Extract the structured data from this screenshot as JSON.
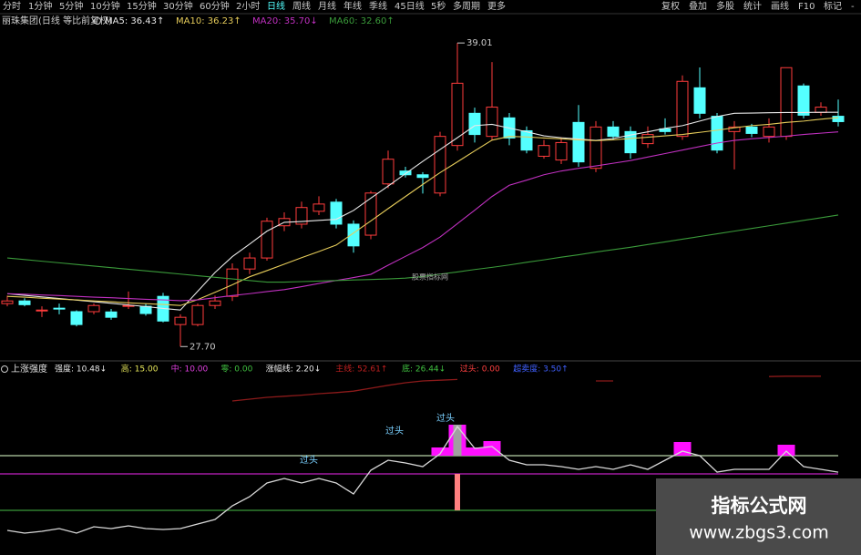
{
  "toolbar": {
    "periods": [
      "分时",
      "1分钟",
      "5分钟",
      "10分钟",
      "15分钟",
      "30分钟",
      "60分钟",
      "2小时",
      "日线",
      "周线",
      "月线",
      "年线",
      "季线",
      "45日线",
      "5秒",
      "多周期",
      "更多"
    ],
    "tools": [
      "复权",
      "叠加",
      "多股",
      "统计",
      "画线",
      "F10",
      "标记",
      "-"
    ]
  },
  "stock": "丽珠集团(日线 等比前复权)",
  "watermark": {
    "title": "指标公式网",
    "url": "www.zbgs3.com"
  },
  "chart_data": [
    {
      "type": "candlestick",
      "ylim": [
        27.2,
        40.0
      ],
      "up_color": "#ff3c3c",
      "down_color": "#54ffff",
      "high_label": "39.01",
      "low_label": "27.70",
      "note": "股票指标网",
      "open": [
        29.3,
        29.4,
        29.06,
        29.13,
        29.0,
        29.0,
        28.99,
        29.2,
        29.2,
        29.57,
        28.52,
        28.52,
        29.23,
        29.57,
        30.59,
        31.0,
        32.2,
        32.26,
        32.74,
        33.08,
        32.26,
        31.85,
        33.76,
        34.24,
        34.1,
        33.42,
        35.19,
        36.39,
        35.53,
        36.22,
        35.74,
        34.79,
        34.65,
        36.05,
        34.34,
        35.88,
        35.71,
        35.26,
        35.81,
        35.53,
        37.34,
        36.28,
        35.71,
        35.88,
        35.53,
        35.53,
        37.41,
        36.42,
        36.28
      ],
      "high": [
        29.6,
        29.5,
        29.2,
        29.3,
        29.05,
        29.3,
        29.1,
        29.75,
        29.3,
        29.7,
        28.9,
        29.3,
        29.6,
        30.8,
        31.2,
        32.5,
        32.7,
        33.1,
        33.3,
        33.2,
        32.4,
        33.5,
        35.0,
        34.4,
        34.2,
        35.7,
        39.01,
        36.6,
        38.3,
        36.4,
        35.9,
        35.4,
        35.5,
        36.7,
        36.1,
        36.1,
        35.9,
        35.9,
        36.2,
        37.8,
        38.1,
        36.4,
        36.1,
        36.0,
        36.2,
        38.1,
        37.5,
        36.8,
        36.9
      ],
      "low": [
        29.2,
        29.2,
        28.8,
        28.9,
        28.45,
        28.9,
        28.7,
        29.1,
        28.85,
        28.6,
        27.7,
        28.45,
        29.1,
        29.4,
        30.4,
        30.9,
        32.0,
        32.1,
        32.6,
        32.1,
        31.2,
        31.7,
        33.6,
        34.0,
        33.4,
        33.3,
        35.0,
        35.3,
        35.4,
        35.2,
        34.9,
        34.7,
        34.5,
        34.4,
        34.2,
        35.4,
        34.7,
        35.1,
        35.6,
        35.4,
        36.2,
        34.9,
        34.3,
        35.5,
        35.3,
        35.4,
        36.2,
        36.3,
        35.9
      ],
      "close": [
        29.4,
        29.26,
        29.06,
        29.1,
        28.52,
        29.23,
        28.79,
        29.23,
        28.93,
        28.65,
        28.79,
        29.23,
        29.4,
        30.59,
        31.0,
        32.37,
        32.47,
        32.88,
        33.01,
        32.26,
        31.45,
        33.42,
        34.68,
        34.1,
        34.0,
        35.53,
        37.51,
        35.6,
        36.62,
        35.47,
        35.02,
        35.19,
        35.3,
        34.58,
        35.88,
        35.53,
        34.92,
        35.6,
        35.71,
        37.58,
        36.39,
        35.02,
        35.88,
        35.64,
        35.88,
        38.09,
        36.32,
        36.62,
        36.08
      ],
      "series": [
        {
          "legend_text": "MA5: 36.43↑",
          "color": "#e8e8e8",
          "values": [
            29.67,
            29.61,
            29.55,
            29.49,
            29.43,
            29.37,
            29.31,
            29.25,
            29.19,
            29.12,
            29.06,
            29.76,
            30.46,
            31.05,
            31.52,
            32.0,
            32.33,
            32.36,
            32.4,
            32.44,
            32.77,
            33.23,
            33.68,
            34.14,
            34.6,
            35.04,
            35.48,
            35.93,
            35.98,
            35.84,
            35.7,
            35.55,
            35.48,
            35.43,
            35.38,
            35.45,
            35.58,
            35.7,
            35.83,
            35.93,
            36.1,
            36.27,
            36.39,
            36.4,
            36.41,
            36.42,
            36.42,
            36.43,
            36.43
          ]
        },
        {
          "legend_text": "MA10: 36.23↑",
          "color": "#e6cc5a",
          "values": [
            29.57,
            29.54,
            29.5,
            29.47,
            29.44,
            29.4,
            29.37,
            29.33,
            29.3,
            29.27,
            29.23,
            29.45,
            29.72,
            30.0,
            30.3,
            30.53,
            30.77,
            31.01,
            31.24,
            31.48,
            31.93,
            32.38,
            32.84,
            33.29,
            33.74,
            34.18,
            34.58,
            34.99,
            35.39,
            35.53,
            35.51,
            35.47,
            35.44,
            35.4,
            35.37,
            35.4,
            35.45,
            35.5,
            35.55,
            35.6,
            35.68,
            35.76,
            35.85,
            35.93,
            35.98,
            36.05,
            36.1,
            36.17,
            36.23
          ]
        },
        {
          "legend_text": "MA20: 35.70↓",
          "color": "#c030c0",
          "values": [
            29.67,
            29.65,
            29.62,
            29.6,
            29.57,
            29.54,
            29.52,
            29.49,
            29.46,
            29.44,
            29.41,
            29.44,
            29.52,
            29.6,
            29.67,
            29.75,
            29.82,
            29.93,
            30.05,
            30.16,
            30.27,
            30.39,
            30.73,
            31.06,
            31.39,
            31.78,
            32.28,
            32.78,
            33.29,
            33.71,
            33.9,
            34.1,
            34.24,
            34.34,
            34.43,
            34.53,
            34.63,
            34.76,
            34.89,
            35.02,
            35.15,
            35.28,
            35.38,
            35.44,
            35.49,
            35.54,
            35.6,
            35.65,
            35.7
          ]
        },
        {
          "legend_text": "MA60: 32.60↑",
          "color": "#3a9a3a",
          "values": [
            31.0,
            30.94,
            30.88,
            30.82,
            30.76,
            30.7,
            30.64,
            30.58,
            30.52,
            30.46,
            30.4,
            30.34,
            30.28,
            30.22,
            30.16,
            30.1,
            30.1,
            30.12,
            30.14,
            30.16,
            30.18,
            30.2,
            30.22,
            30.25,
            30.31,
            30.4,
            30.48,
            30.57,
            30.65,
            30.74,
            30.84,
            30.93,
            31.03,
            31.12,
            31.22,
            31.31,
            31.4,
            31.5,
            31.6,
            31.7,
            31.8,
            31.9,
            32.0,
            32.1,
            32.2,
            32.3,
            32.4,
            32.5,
            32.6
          ]
        }
      ]
    },
    {
      "type": "line",
      "title": "上涨强度",
      "ylim": [
        -11.25,
        40
      ],
      "legend": [
        {
          "text": "强度: 10.48↓",
          "color": "#e8e8e8"
        },
        {
          "text": "高: 15.00",
          "color": "#e6e65a"
        },
        {
          "text": "中: 10.00",
          "color": "#e040e0"
        },
        {
          "text": "零: 0.00",
          "color": "#40c040"
        },
        {
          "text": "涨幅线: 2.20↓",
          "color": "#e8e8e8"
        },
        {
          "text": "主线: 52.61↑",
          "color": "#c02020"
        },
        {
          "text": "底: 26.44↓",
          "color": "#40c040"
        },
        {
          "text": "过头: 0.00",
          "color": "#ff4040"
        },
        {
          "text": "超卖度: 3.50↑",
          "color": "#4060ff"
        }
      ],
      "hlines": [
        {
          "value": 15,
          "color": "#b8d4a8"
        },
        {
          "value": 10,
          "color": "#c020c0"
        },
        {
          "value": 0,
          "color": "#3a9a3a"
        }
      ],
      "annotations": [
        "过头",
        "过头",
        "过头"
      ],
      "series": [
        {
          "color": "#d8d8d8",
          "values": [
            -5.5,
            -6.25,
            -5.75,
            -5,
            -6.25,
            -4.5,
            -5,
            -4.25,
            -5,
            -5.25,
            -5,
            -3.75,
            -2.5,
            1.25,
            3.75,
            7.5,
            8.75,
            7.5,
            8.75,
            7.5,
            4.5,
            11,
            13.75,
            13,
            12,
            15.5,
            23,
            17,
            17.5,
            13.75,
            12.5,
            12.5,
            12,
            11.25,
            12,
            11.25,
            12.5,
            11.25,
            13.75,
            16.25,
            15,
            10.5,
            11.25,
            11.25,
            11.25,
            16.25,
            12,
            11.25,
            10.48
          ]
        },
        {
          "color": "#8b1a1a",
          "values": [
            null,
            null,
            null,
            null,
            null,
            null,
            null,
            null,
            null,
            null,
            null,
            null,
            null,
            30,
            30.5,
            31,
            31.3,
            31.6,
            32,
            32.3,
            32.7,
            33.5,
            34.3,
            35,
            35.5,
            35.7,
            35.9,
            null,
            null,
            null,
            null,
            null,
            null,
            null,
            35.5,
            35.5,
            null,
            null,
            null,
            null,
            null,
            null,
            null,
            null,
            36.7,
            36.8,
            36.8,
            36.8,
            null
          ]
        }
      ],
      "bars": [
        {
          "color": "#ff10ff",
          "values": [
            null,
            null,
            null,
            null,
            null,
            null,
            null,
            null,
            null,
            null,
            null,
            null,
            null,
            null,
            null,
            null,
            null,
            null,
            null,
            null,
            null,
            null,
            null,
            null,
            null,
            17.25,
            23.5,
            17.25,
            19,
            null,
            null,
            null,
            null,
            null,
            null,
            null,
            null,
            null,
            null,
            18.75,
            null,
            null,
            null,
            null,
            null,
            18,
            null,
            null,
            null
          ]
        },
        {
          "color": "#a0a0a0",
          "values": [
            null,
            null,
            null,
            null,
            null,
            null,
            null,
            null,
            null,
            null,
            null,
            null,
            null,
            null,
            null,
            null,
            null,
            null,
            null,
            null,
            null,
            null,
            null,
            null,
            null,
            null,
            23.5,
            null,
            null,
            null,
            null,
            null,
            null,
            null,
            null,
            null,
            null,
            null,
            null,
            null,
            null,
            null,
            null,
            null,
            null,
            null,
            null,
            null,
            null
          ]
        },
        {
          "color": "#ff8080",
          "values": [
            null,
            null,
            null,
            null,
            null,
            null,
            null,
            null,
            null,
            null,
            null,
            null,
            null,
            null,
            null,
            null,
            null,
            null,
            null,
            null,
            null,
            null,
            null,
            null,
            null,
            null,
            0,
            null,
            null,
            null,
            null,
            null,
            null,
            null,
            null,
            null,
            null,
            null,
            null,
            null,
            null,
            null,
            null,
            null,
            null,
            null,
            null,
            null,
            null
          ]
        }
      ]
    }
  ]
}
